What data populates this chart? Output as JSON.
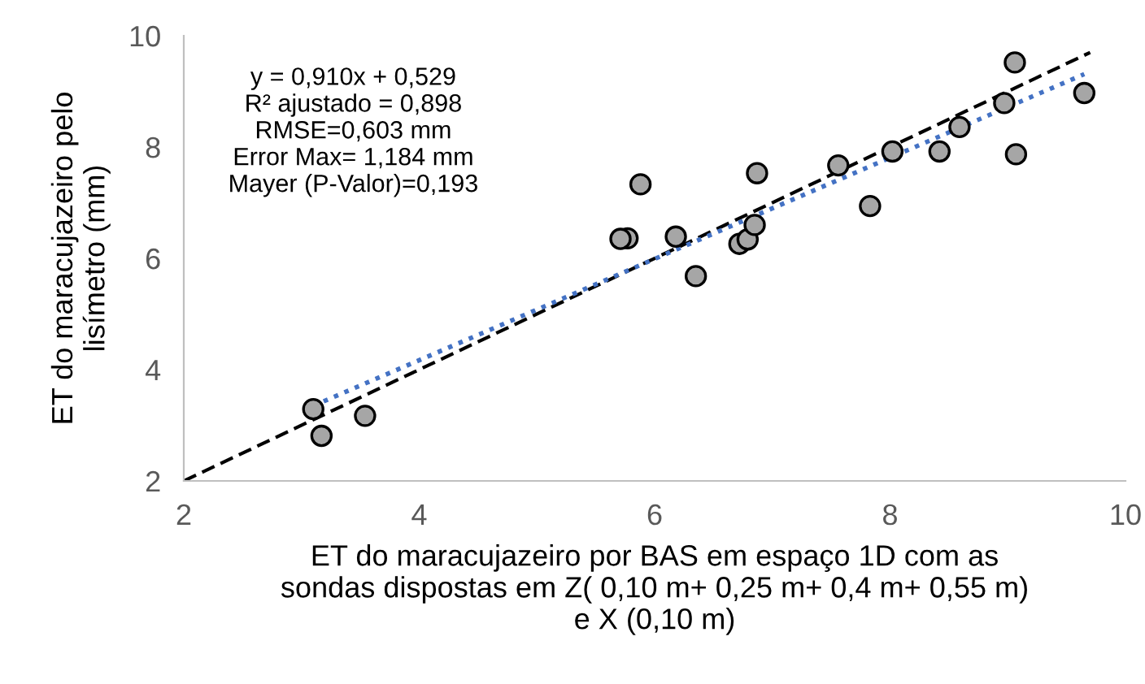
{
  "chart_data": {
    "type": "scatter",
    "xlabel": "ET do maracujazeiro por BAS em espaço 1D com as\nsondas dispostas em Z( 0,10 m+ 0,25 m+ 0,4 m+ 0,55 m)\ne X (0,10 m)",
    "ylabel": "ET do maracujazeiro pelo\nlisímetro (mm)",
    "annotations": [
      "y = 0,910x + 0,529\nR² ajustado = 0,898\nRMSE=0,603 mm\nError Max= 1,184 mm\nMayer (P-Valor)=0,193"
    ],
    "xlim": [
      2,
      10
    ],
    "ylim": [
      2,
      10
    ],
    "xticks": [
      2,
      4,
      6,
      8,
      10
    ],
    "yticks": [
      2,
      4,
      6,
      8,
      10
    ],
    "grid": false,
    "legend": false,
    "series": [
      {
        "color": "#a6a6a6",
        "marker": "circle",
        "x": [
          3.1,
          3.17,
          3.54,
          5.88,
          5.77,
          5.71,
          6.18,
          6.35,
          6.87,
          6.72,
          6.79,
          6.85,
          7.56,
          7.83,
          8.02,
          8.42,
          8.59,
          8.97,
          9.06,
          9.07,
          9.65
        ],
        "values": [
          3.29,
          2.81,
          3.17,
          7.33,
          6.36,
          6.35,
          6.39,
          5.68,
          7.53,
          6.26,
          6.34,
          6.6,
          7.67,
          6.94,
          7.92,
          7.92,
          8.36,
          8.79,
          9.52,
          7.87,
          8.97
        ]
      },
      {
        "type": "line",
        "color": "#000000",
        "line_style": "dashed",
        "marker": "none",
        "x": [
          2,
          9.7
        ],
        "values": [
          2,
          9.7
        ]
      },
      {
        "type": "line",
        "color": "#4472c4",
        "line_style": "dotted",
        "marker": "none",
        "x": [
          3.1,
          9.65
        ],
        "values": [
          3.35,
          9.31
        ]
      }
    ]
  }
}
